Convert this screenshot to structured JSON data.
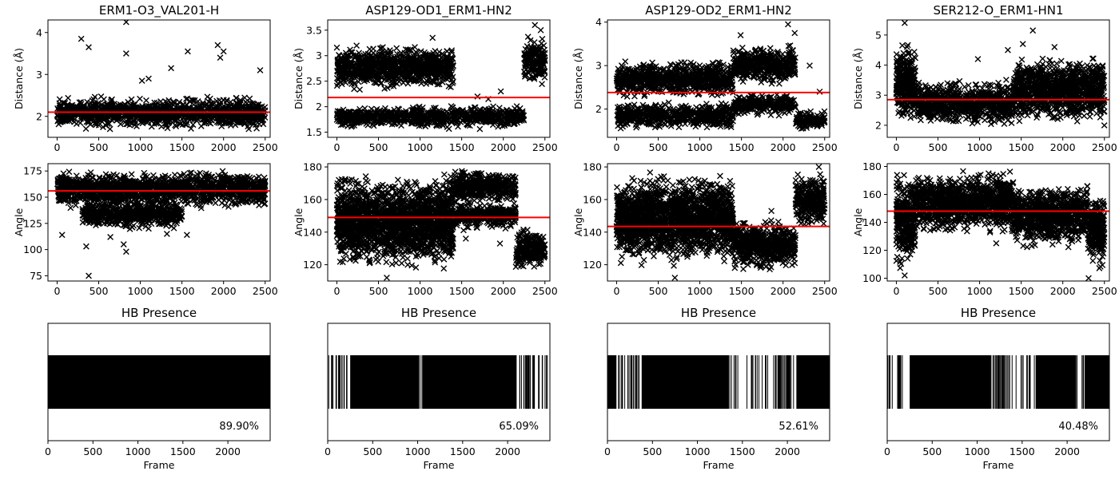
{
  "chart_data": [
    {
      "id": "p1",
      "type": "scatter",
      "title": "ERM1-O3_VAL201-H",
      "ylabel": "Distance (Å)",
      "xlim": [
        -110,
        2560
      ],
      "ylim": [
        1.5,
        4.3
      ],
      "xticks": [
        0,
        500,
        1000,
        1500,
        2000,
        2500
      ],
      "yticks": [
        2,
        3,
        4
      ],
      "mean_line": 2.1,
      "segments": [
        [
          0,
          2500,
          1.65,
          2.5
        ]
      ],
      "outliers": [
        [
          290,
          3.85
        ],
        [
          380,
          3.65
        ],
        [
          830,
          4.25
        ],
        [
          830,
          3.5
        ],
        [
          1570,
          3.55
        ],
        [
          1930,
          3.7
        ],
        [
          1960,
          3.4
        ],
        [
          2000,
          3.55
        ],
        [
          2440,
          3.1
        ],
        [
          1020,
          2.85
        ],
        [
          1370,
          3.15
        ],
        [
          1100,
          2.9
        ]
      ],
      "marker": "x"
    },
    {
      "id": "p2",
      "type": "scatter",
      "title": "ASP129-OD1_ERM1-HN2",
      "ylabel": "Distance (Å)",
      "xlim": [
        -110,
        2560
      ],
      "ylim": [
        1.4,
        3.7
      ],
      "xticks": [
        0,
        500,
        1000,
        1500,
        2000,
        2500
      ],
      "yticks": [
        1.5,
        2.0,
        2.5,
        3.0,
        3.5
      ],
      "mean_line": 2.18,
      "segments": [
        [
          0,
          1400,
          1.55,
          2.05
        ],
        [
          0,
          1400,
          2.3,
          3.25
        ],
        [
          1400,
          2150,
          1.55,
          2.05
        ],
        [
          2150,
          2250,
          1.6,
          2.1
        ],
        [
          2250,
          2500,
          2.35,
          3.4
        ]
      ],
      "outliers": [
        [
          2380,
          3.6
        ],
        [
          2450,
          3.5
        ],
        [
          1150,
          3.35
        ],
        [
          1690,
          2.2
        ],
        [
          1820,
          2.15
        ],
        [
          1970,
          2.3
        ]
      ],
      "marker": "x"
    },
    {
      "id": "p3",
      "type": "scatter",
      "title": "ASP129-OD2_ERM1-HN2",
      "ylabel": "Distance (Å)",
      "xlim": [
        -110,
        2560
      ],
      "ylim": [
        1.35,
        4.05
      ],
      "xticks": [
        0,
        500,
        1000,
        1500,
        2000,
        2500
      ],
      "yticks": [
        2,
        3,
        4
      ],
      "mean_line": 2.38,
      "segments": [
        [
          0,
          1400,
          1.5,
          2.2
        ],
        [
          0,
          1400,
          2.2,
          3.15
        ],
        [
          1400,
          2150,
          2.5,
          3.5
        ],
        [
          1400,
          2150,
          1.8,
          2.4
        ],
        [
          2150,
          2500,
          1.5,
          2.0
        ]
      ],
      "outliers": [
        [
          2060,
          3.95
        ],
        [
          2320,
          3.0
        ],
        [
          1490,
          3.7
        ],
        [
          1950,
          1.85
        ],
        [
          1620,
          2.0
        ],
        [
          2440,
          2.4
        ],
        [
          2140,
          3.75
        ]
      ],
      "marker": "x"
    },
    {
      "id": "p4",
      "type": "scatter",
      "title": "SER212-O_ERM1-HN1",
      "ylabel": "Distance (Å)",
      "xlim": [
        -110,
        2560
      ],
      "ylim": [
        1.6,
        5.5
      ],
      "xticks": [
        0,
        500,
        1000,
        1500,
        2000,
        2500
      ],
      "yticks": [
        2,
        3,
        4,
        5
      ],
      "mean_line": 2.85,
      "segments": [
        [
          0,
          230,
          1.8,
          5.0
        ],
        [
          230,
          1400,
          1.9,
          3.6
        ],
        [
          1400,
          2300,
          2.0,
          4.4
        ],
        [
          2300,
          2500,
          1.9,
          4.5
        ]
      ],
      "outliers": [
        [
          100,
          5.4
        ],
        [
          1640,
          5.15
        ],
        [
          1520,
          4.7
        ],
        [
          1340,
          4.5
        ],
        [
          980,
          4.2
        ],
        [
          1900,
          4.6
        ]
      ],
      "marker": "x"
    },
    {
      "id": "p5",
      "type": "scatter",
      "title": "",
      "ylabel": "Angle",
      "xlim": [
        -110,
        2560
      ],
      "ylim": [
        70,
        182
      ],
      "xticks": [
        0,
        500,
        1000,
        1500,
        2000,
        2500
      ],
      "yticks": [
        75,
        100,
        125,
        150,
        175
      ],
      "mean_line": 156,
      "segments": [
        [
          0,
          2500,
          138,
          177
        ],
        [
          300,
          1500,
          118,
          150
        ]
      ],
      "outliers": [
        [
          380,
          75
        ],
        [
          60,
          114
        ],
        [
          350,
          103
        ],
        [
          830,
          98
        ],
        [
          800,
          105
        ],
        [
          1560,
          114
        ],
        [
          640,
          112
        ],
        [
          1100,
          120
        ],
        [
          1320,
          115
        ]
      ],
      "marker": "x"
    },
    {
      "id": "p6",
      "type": "scatter",
      "title": "",
      "ylabel": "Angle",
      "xlim": [
        -110,
        2560
      ],
      "ylim": [
        110,
        182
      ],
      "xticks": [
        0,
        500,
        1000,
        1500,
        2000,
        2500
      ],
      "yticks": [
        120,
        140,
        160,
        180
      ],
      "mean_line": 149,
      "segments": [
        [
          0,
          1400,
          115,
          178
        ],
        [
          1400,
          2150,
          155,
          180
        ],
        [
          1400,
          2150,
          140,
          160
        ],
        [
          2150,
          2500,
          115,
          145
        ]
      ],
      "outliers": [
        [
          600,
          112
        ],
        [
          1960,
          133
        ],
        [
          1550,
          136
        ]
      ],
      "marker": "x"
    },
    {
      "id": "p7",
      "type": "scatter",
      "title": "",
      "ylabel": "Angle",
      "xlim": [
        -110,
        2560
      ],
      "ylim": [
        110,
        182
      ],
      "xticks": [
        0,
        500,
        1000,
        1500,
        2000,
        2500
      ],
      "yticks": [
        120,
        140,
        160,
        180
      ],
      "mean_line": 143.5,
      "segments": [
        [
          0,
          1400,
          118,
          178
        ],
        [
          1400,
          2150,
          115,
          150
        ],
        [
          2150,
          2500,
          140,
          178
        ]
      ],
      "outliers": [
        [
          1860,
          153
        ],
        [
          700,
          112
        ],
        [
          2430,
          180
        ]
      ],
      "marker": "x"
    },
    {
      "id": "p8",
      "type": "scatter",
      "title": "",
      "ylabel": "Angle",
      "xlim": [
        -110,
        2560
      ],
      "ylim": [
        98,
        182
      ],
      "xticks": [
        0,
        500,
        1000,
        1500,
        2000,
        2500
      ],
      "yticks": [
        100,
        120,
        140,
        160,
        180
      ],
      "mean_line": 148,
      "segments": [
        [
          0,
          230,
          105,
          178
        ],
        [
          230,
          1400,
          130,
          178
        ],
        [
          1400,
          2300,
          120,
          170
        ],
        [
          2300,
          2500,
          105,
          165
        ]
      ],
      "outliers": [
        [
          2310,
          100
        ],
        [
          100,
          102
        ],
        [
          1200,
          125
        ]
      ],
      "marker": "x"
    },
    {
      "id": "p9",
      "type": "barcode",
      "title": "HB Presence",
      "xlabel": "Frame",
      "xlim": [
        0,
        2470
      ],
      "xticks": [
        0,
        500,
        1000,
        1500,
        2000
      ],
      "percentage": "89.90%",
      "present_fraction": 0.899,
      "dense_ranges": [
        [
          0,
          2470
        ]
      ],
      "sparse_ranges": []
    },
    {
      "id": "p10",
      "type": "barcode",
      "title": "HB Presence",
      "xlabel": "Frame",
      "xlim": [
        0,
        2470
      ],
      "xticks": [
        0,
        500,
        1000,
        1500,
        2000
      ],
      "percentage": "65.09%",
      "present_fraction": 0.6509,
      "dense_ranges": [
        [
          250,
          1000
        ],
        [
          1050,
          2100
        ]
      ],
      "sparse_ranges": [
        [
          0,
          250
        ],
        [
          1000,
          1050
        ],
        [
          2100,
          2470
        ]
      ]
    },
    {
      "id": "p11",
      "type": "barcode",
      "title": "HB Presence",
      "xlabel": "Frame",
      "xlim": [
        0,
        2470
      ],
      "xticks": [
        0,
        500,
        1000,
        1500,
        2000
      ],
      "percentage": "52.61%",
      "present_fraction": 0.5261,
      "dense_ranges": [
        [
          0,
          100
        ],
        [
          380,
          1350
        ],
        [
          2100,
          2470
        ]
      ],
      "sparse_ranges": [
        [
          100,
          380
        ],
        [
          1350,
          1450
        ],
        [
          1550,
          2100
        ]
      ]
    },
    {
      "id": "p12",
      "type": "barcode",
      "title": "HB Presence",
      "xlabel": "Frame",
      "xlim": [
        0,
        2470
      ],
      "xticks": [
        0,
        500,
        1000,
        1500,
        2000
      ],
      "percentage": "40.48%",
      "present_fraction": 0.4048,
      "dense_ranges": [
        [
          250,
          1150
        ],
        [
          1650,
          2100
        ],
        [
          2200,
          2470
        ]
      ],
      "sparse_ranges": [
        [
          0,
          230
        ],
        [
          1150,
          1650
        ],
        [
          2100,
          2200
        ]
      ]
    }
  ]
}
